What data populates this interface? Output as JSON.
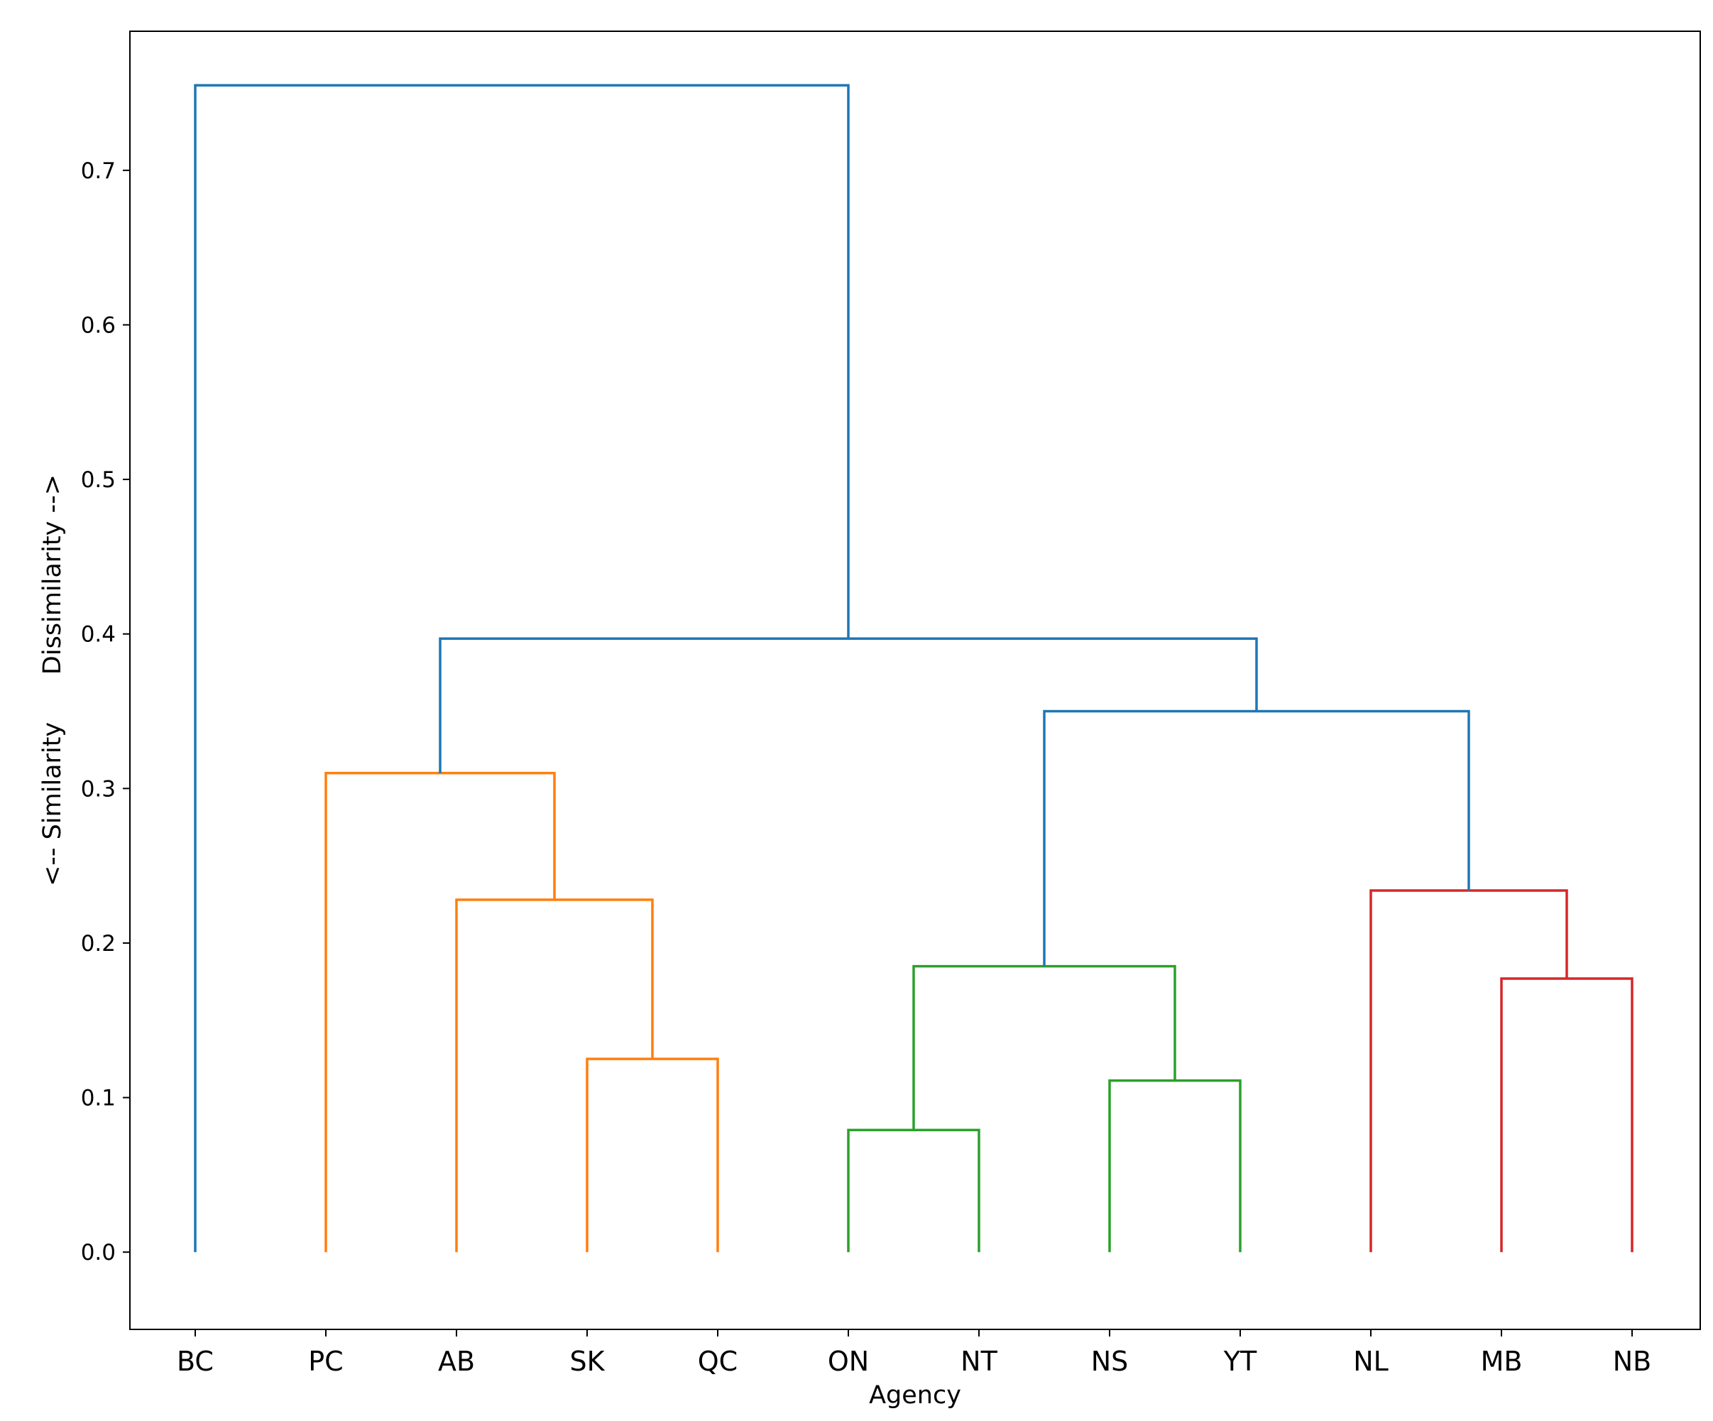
{
  "chart_data": {
    "type": "dendrogram",
    "xlabel": "Agency",
    "ylabel": "<-- Similarity      Dissimilarity -->",
    "ylim": [
      -0.05,
      0.79
    ],
    "yticks": [
      0.0,
      0.1,
      0.2,
      0.3,
      0.4,
      0.5,
      0.6,
      0.7
    ],
    "ytick_labels": [
      "0.0",
      "0.1",
      "0.2",
      "0.3",
      "0.4",
      "0.5",
      "0.6",
      "0.7"
    ],
    "grid": false,
    "leaves": [
      "BC",
      "PC",
      "AB",
      "SK",
      "QC",
      "ON",
      "NT",
      "NS",
      "YT",
      "NL",
      "MB",
      "NB"
    ],
    "colors": {
      "blue": "#1f77b4",
      "orange": "#ff7f0e",
      "green": "#2ca02c",
      "red": "#d62728"
    },
    "links": [
      {
        "left": "SK",
        "right": "QC",
        "height": 0.125,
        "color": "orange"
      },
      {
        "left": "AB",
        "right": "SK+QC",
        "height": 0.228,
        "color": "orange"
      },
      {
        "left": "PC",
        "right": "AB+SK+QC",
        "height": 0.31,
        "color": "orange"
      },
      {
        "left": "ON",
        "right": "NT",
        "height": 0.079,
        "color": "green"
      },
      {
        "left": "NS",
        "right": "YT",
        "height": 0.111,
        "color": "green"
      },
      {
        "left": "ON+NT",
        "right": "NS+YT",
        "height": 0.185,
        "color": "green"
      },
      {
        "left": "MB",
        "right": "NB",
        "height": 0.177,
        "color": "red"
      },
      {
        "left": "NL",
        "right": "MB+NB",
        "height": 0.234,
        "color": "red"
      },
      {
        "left": "ON+NT+NS+YT",
        "right": "NL+MB+NB",
        "height": 0.35,
        "color": "blue"
      },
      {
        "left": "PC+AB+SK+QC",
        "right": "ON+NT+NS+YT+NL+MB+NB",
        "height": 0.397,
        "color": "blue"
      },
      {
        "left": "BC",
        "right": "PC+AB+SK+QC+ON+NT+NS+YT+NL+MB+NB",
        "height": 0.755,
        "color": "blue"
      }
    ]
  }
}
